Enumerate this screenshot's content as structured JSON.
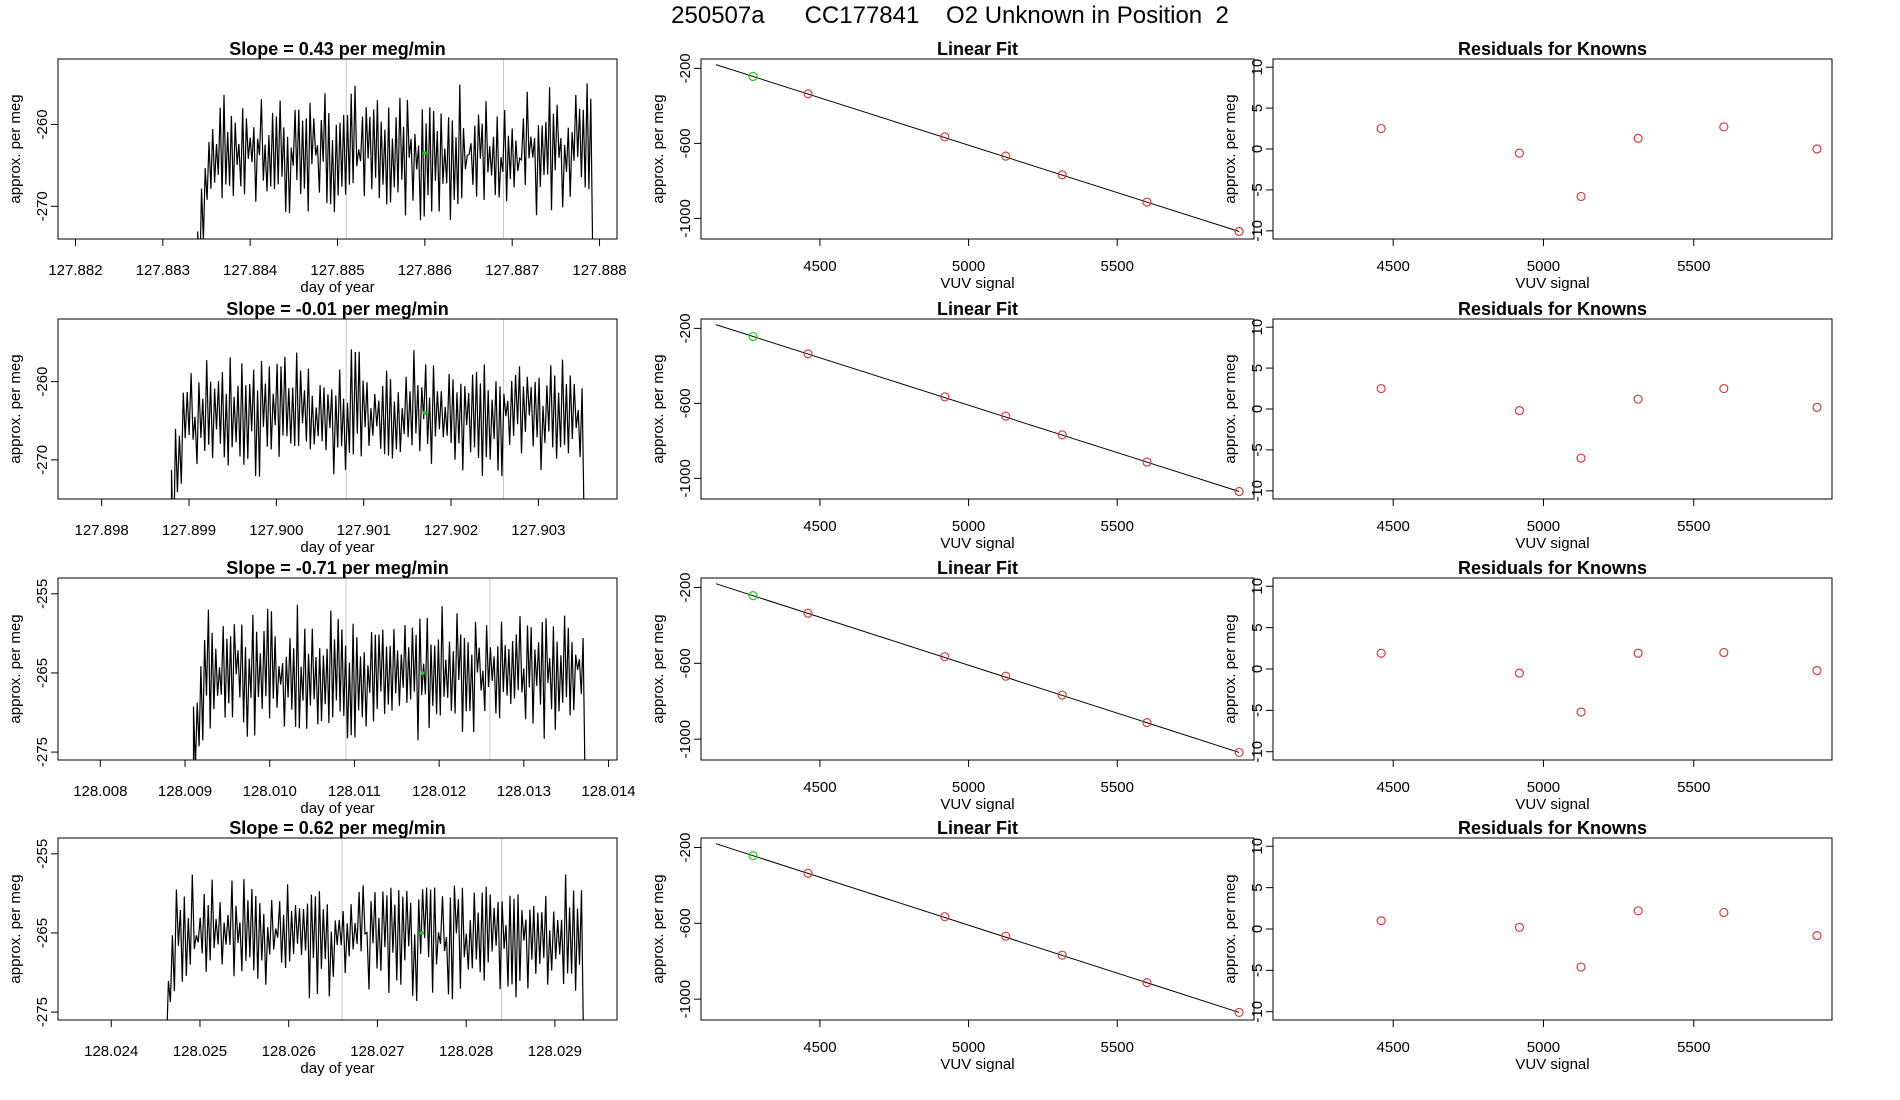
{
  "page_title": "250507a      CC177841    O2 Unknown in Position  2",
  "chart_data": [
    {
      "type": "line",
      "row": 1,
      "column": "time-series",
      "title": "Slope =  0.43  per meg/min",
      "xlabel": "day of year",
      "ylabel": "approx. per meg",
      "xlim": [
        127.8818,
        127.8882
      ],
      "ylim": [
        -274,
        -252
      ],
      "xticks": [
        "127.882",
        "127.883",
        "127.884",
        "127.885",
        "127.886",
        "127.887",
        "127.888"
      ],
      "yticks": [
        "-260",
        "-270"
      ],
      "signal_start": 127.8834,
      "signal_end": 127.8879,
      "signal_mean": -263.5,
      "signal_amplitude": 5.5,
      "vlines": [
        127.8851,
        127.8869
      ],
      "marker": {
        "x": 127.886,
        "y": -263.5,
        "color": "#22cc22"
      }
    },
    {
      "type": "scatter",
      "row": 1,
      "column": "linear-fit",
      "title": "Linear Fit",
      "xlabel": "VUV signal",
      "ylabel": "approx. per meg",
      "xlim": [
        4100,
        5960
      ],
      "ylim": [
        -1110,
        -150
      ],
      "xticks": [
        "4500",
        "5000",
        "5500"
      ],
      "yticks": [
        "-200",
        "-600",
        "-1000"
      ],
      "fit_line": {
        "x": [
          4150,
          5910
        ],
        "y": [
          -180,
          -1070
        ]
      },
      "points": {
        "x": [
          4460,
          4920,
          5125,
          5315,
          5600,
          5910
        ],
        "y": [
          -336,
          -565,
          -668,
          -768,
          -913,
          -1070
        ]
      },
      "unknown": {
        "x": 4275,
        "y": -243
      },
      "point_color": "#d04040",
      "unknown_color": "#22cc22"
    },
    {
      "type": "scatter",
      "row": 1,
      "column": "residuals",
      "title": "Residuals for Knowns",
      "xlabel": "VUV signal",
      "ylabel": "approx. per meg",
      "xlim": [
        4100,
        5960
      ],
      "ylim": [
        -11,
        11
      ],
      "xticks": [
        "4500",
        "5000",
        "5500"
      ],
      "yticks": [
        "10",
        "5",
        "0",
        "-5",
        "-10"
      ],
      "points": {
        "x": [
          4460,
          4920,
          5125,
          5315,
          5600,
          5910
        ],
        "y": [
          2.5,
          -0.5,
          -5.8,
          1.3,
          2.7,
          0.0
        ]
      },
      "point_color": "#d04040"
    },
    {
      "type": "line",
      "row": 2,
      "column": "time-series",
      "title": "Slope =  -0.01  per meg/min",
      "xlabel": "day of year",
      "ylabel": "approx. per meg",
      "xlim": [
        127.8975,
        127.9039
      ],
      "ylim": [
        -275,
        -252
      ],
      "xticks": [
        "127.898",
        "127.899",
        "127.900",
        "127.901",
        "127.902",
        "127.903"
      ],
      "yticks": [
        "-260",
        "-270"
      ],
      "signal_start": 127.8988,
      "signal_end": 127.9035,
      "signal_mean": -264,
      "signal_amplitude": 5.5,
      "vlines": [
        127.9008,
        127.9026
      ],
      "marker": {
        "x": 127.9017,
        "y": -264,
        "color": "#22cc22"
      }
    },
    {
      "type": "scatter",
      "row": 2,
      "column": "linear-fit",
      "title": "Linear Fit",
      "xlabel": "VUV signal",
      "ylabel": "approx. per meg",
      "xlim": [
        4100,
        5960
      ],
      "ylim": [
        -1110,
        -150
      ],
      "xticks": [
        "4500",
        "5000",
        "5500"
      ],
      "yticks": [
        "-200",
        "-600",
        "-1000"
      ],
      "fit_line": {
        "x": [
          4150,
          5910
        ],
        "y": [
          -180,
          -1070
        ]
      },
      "points": {
        "x": [
          4460,
          4920,
          5125,
          5315,
          5600,
          5910
        ],
        "y": [
          -336,
          -565,
          -668,
          -768,
          -913,
          -1070
        ]
      },
      "unknown": {
        "x": 4275,
        "y": -243
      },
      "point_color": "#d04040",
      "unknown_color": "#22cc22"
    },
    {
      "type": "scatter",
      "row": 2,
      "column": "residuals",
      "title": "Residuals for Knowns",
      "xlabel": "VUV signal",
      "ylabel": "approx. per meg",
      "xlim": [
        4100,
        5960
      ],
      "ylim": [
        -11,
        11
      ],
      "xticks": [
        "4500",
        "5000",
        "5500"
      ],
      "yticks": [
        "10",
        "5",
        "0",
        "-5",
        "-10"
      ],
      "points": {
        "x": [
          4460,
          4920,
          5125,
          5315,
          5600,
          5910
        ],
        "y": [
          2.5,
          -0.2,
          -6.0,
          1.2,
          2.5,
          0.2
        ]
      },
      "point_color": "#d04040"
    },
    {
      "type": "line",
      "row": 3,
      "column": "time-series",
      "title": "Slope =  -0.71  per meg/min",
      "xlabel": "day of year",
      "ylabel": "approx. per meg",
      "xlim": [
        128.0075,
        128.0141
      ],
      "ylim": [
        -276,
        -253
      ],
      "xticks": [
        "128.008",
        "128.009",
        "128.010",
        "128.011",
        "128.012",
        "128.013",
        "128.014"
      ],
      "yticks": [
        "-255",
        "-265",
        "-275"
      ],
      "signal_start": 128.0091,
      "signal_end": 128.0137,
      "signal_mean": -265,
      "signal_amplitude": 6,
      "vlines": [
        128.0109,
        128.0126
      ],
      "marker": {
        "x": 128.0118,
        "y": -265,
        "color": "#22cc22"
      }
    },
    {
      "type": "scatter",
      "row": 3,
      "column": "linear-fit",
      "title": "Linear Fit",
      "xlabel": "VUV signal",
      "ylabel": "approx. per meg",
      "xlim": [
        4100,
        5960
      ],
      "ylim": [
        -1110,
        -150
      ],
      "xticks": [
        "4500",
        "5000",
        "5500"
      ],
      "yticks": [
        "-200",
        "-600",
        "-1000"
      ],
      "fit_line": {
        "x": [
          4150,
          5910
        ],
        "y": [
          -180,
          -1070
        ]
      },
      "points": {
        "x": [
          4460,
          4920,
          5125,
          5315,
          5600,
          5910
        ],
        "y": [
          -336,
          -565,
          -668,
          -768,
          -913,
          -1070
        ]
      },
      "unknown": {
        "x": 4275,
        "y": -243
      },
      "point_color": "#d04040",
      "unknown_color": "#22cc22"
    },
    {
      "type": "scatter",
      "row": 3,
      "column": "residuals",
      "title": "Residuals for Knowns",
      "xlabel": "VUV signal",
      "ylabel": "approx. per meg",
      "xlim": [
        4100,
        5960
      ],
      "ylim": [
        -11,
        11
      ],
      "xticks": [
        "4500",
        "5000",
        "5500"
      ],
      "yticks": [
        "10",
        "5",
        "0",
        "-5",
        "-10"
      ],
      "points": {
        "x": [
          4460,
          4920,
          5125,
          5315,
          5600,
          5910
        ],
        "y": [
          1.9,
          -0.5,
          -5.2,
          1.9,
          2.0,
          -0.2
        ]
      },
      "point_color": "#d04040"
    },
    {
      "type": "line",
      "row": 4,
      "column": "time-series",
      "title": "Slope =  0.62  per meg/min",
      "xlabel": "day of year",
      "ylabel": "approx. per meg",
      "xlim": [
        128.0234,
        128.0297
      ],
      "ylim": [
        -276,
        -253
      ],
      "xticks": [
        "128.024",
        "128.025",
        "128.026",
        "128.027",
        "128.028",
        "128.029"
      ],
      "yticks": [
        "-255",
        "-265",
        "-275"
      ],
      "signal_start": 128.0246,
      "signal_end": 128.0293,
      "signal_mean": -265,
      "signal_amplitude": 6,
      "vlines": [
        128.0266,
        128.0284
      ],
      "marker": {
        "x": 128.0275,
        "y": -265,
        "color": "#22cc22"
      }
    },
    {
      "type": "scatter",
      "row": 4,
      "column": "linear-fit",
      "title": "Linear Fit",
      "xlabel": "VUV signal",
      "ylabel": "approx. per meg",
      "xlim": [
        4100,
        5960
      ],
      "ylim": [
        -1110,
        -150
      ],
      "xticks": [
        "4500",
        "5000",
        "5500"
      ],
      "yticks": [
        "-200",
        "-600",
        "-1000"
      ],
      "fit_line": {
        "x": [
          4150,
          5910
        ],
        "y": [
          -180,
          -1070
        ]
      },
      "points": {
        "x": [
          4460,
          4920,
          5125,
          5315,
          5600,
          5910
        ],
        "y": [
          -336,
          -565,
          -668,
          -768,
          -913,
          -1070
        ]
      },
      "unknown": {
        "x": 4275,
        "y": -243
      },
      "point_color": "#d04040",
      "unknown_color": "#22cc22"
    },
    {
      "type": "scatter",
      "row": 4,
      "column": "residuals",
      "title": "Residuals for Knowns",
      "xlabel": "VUV signal",
      "ylabel": "approx. per meg",
      "xlim": [
        4100,
        5960
      ],
      "ylim": [
        -11,
        11
      ],
      "xticks": [
        "4500",
        "5000",
        "5500"
      ],
      "yticks": [
        "10",
        "5",
        "0",
        "-5",
        "-10"
      ],
      "points": {
        "x": [
          4460,
          4920,
          5125,
          5315,
          5600,
          5910
        ],
        "y": [
          1.0,
          0.2,
          -4.6,
          2.2,
          2.0,
          -0.8
        ]
      },
      "point_color": "#d04040"
    }
  ]
}
